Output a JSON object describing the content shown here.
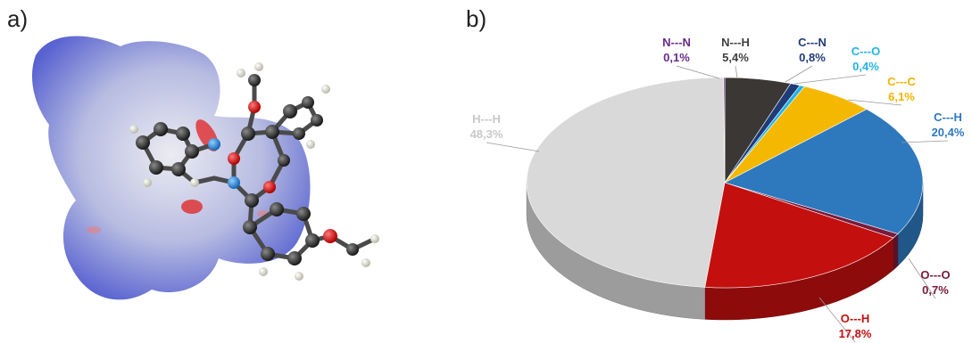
{
  "panels": {
    "a_label": "a)",
    "b_label": "b)"
  },
  "chart_data": {
    "type": "pie",
    "title": "",
    "slices": [
      {
        "name": "N---H",
        "value_label": "5,4%",
        "value": 5.4,
        "color": "#3b3735",
        "label_color": "#404040"
      },
      {
        "name": "C---N",
        "value_label": "0,8%",
        "value": 0.8,
        "color": "#1f3b78",
        "label_color": "#1f3b78"
      },
      {
        "name": "C---O",
        "value_label": "0,4%",
        "value": 0.4,
        "color": "#21b4e8",
        "label_color": "#21b4e8"
      },
      {
        "name": "C---C",
        "value_label": "6,1%",
        "value": 6.1,
        "color": "#f5b800",
        "label_color": "#f0b400"
      },
      {
        "name": "C---H",
        "value_label": "20,4%",
        "value": 20.4,
        "color": "#2e78bd",
        "label_color": "#2e78bd"
      },
      {
        "name": "O---O",
        "value_label": "0,7%",
        "value": 0.7,
        "color": "#7a1a3c",
        "label_color": "#7a1a3c"
      },
      {
        "name": "O---H",
        "value_label": "17,8%",
        "value": 17.8,
        "color": "#c40f0f",
        "label_color": "#c40f0f"
      },
      {
        "name": "H---H",
        "value_label": "48,3%",
        "value": 48.3,
        "color": "#d9d9d9",
        "label_color": "#c8c8c8"
      },
      {
        "name": "N---N",
        "value_label": "0,1%",
        "value": 0.1,
        "color": "#6a2a8a",
        "label_color": "#6a2a8a"
      }
    ]
  }
}
